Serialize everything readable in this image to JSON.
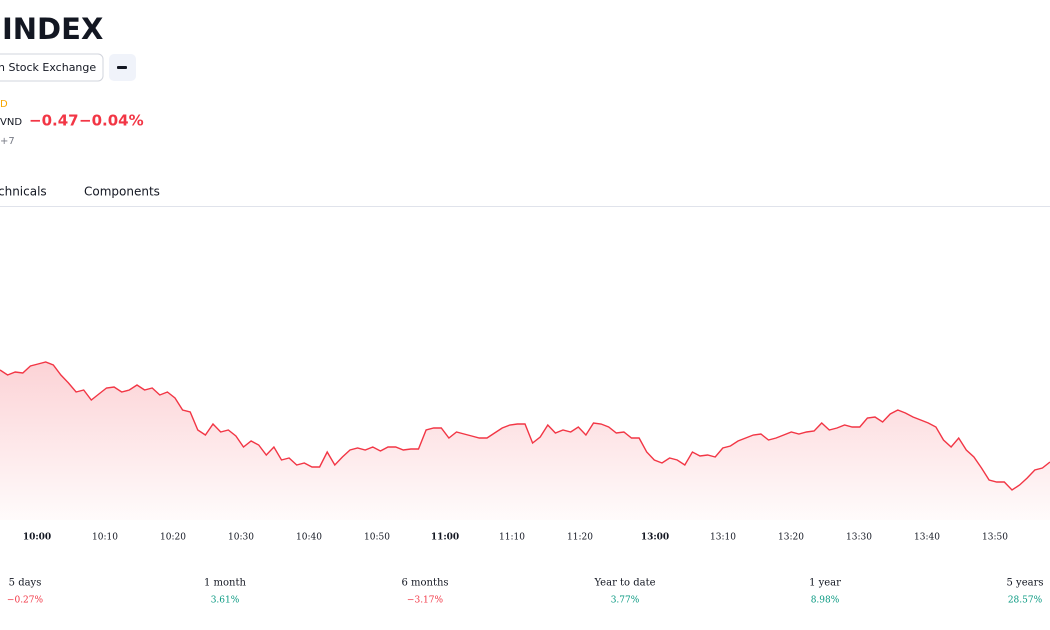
{
  "header": {
    "title": "INDEX",
    "exchange": "h Stock Exchange",
    "currency_fragment": "D",
    "currency": "VND",
    "change": "−0.47",
    "change_percent": "−0.04%",
    "timezone": "+7"
  },
  "tabs": [
    "chnicals",
    "Components"
  ],
  "chart_data": {
    "type": "line",
    "color": "#f23645",
    "time_labels": [
      "10:00",
      "10:10",
      "10:20",
      "10:30",
      "10:40",
      "10:50",
      "11:00",
      "11:10",
      "11:20",
      "13:00",
      "13:10",
      "13:20",
      "13:30",
      "13:40",
      "13:50"
    ],
    "bold_labels": [
      "10:00",
      "11:00",
      "13:00"
    ],
    "ylim": [
      0,
      180
    ],
    "values": [
      150,
      145,
      148,
      147,
      154,
      156,
      158,
      155,
      145,
      137,
      128,
      130,
      120,
      126,
      132,
      133,
      128,
      130,
      135,
      130,
      132,
      125,
      128,
      122,
      110,
      108,
      90,
      85,
      96,
      88,
      90,
      84,
      73,
      79,
      75,
      65,
      73,
      60,
      62,
      55,
      57,
      53,
      53,
      68,
      55,
      63,
      70,
      72,
      70,
      73,
      69,
      73,
      73,
      70,
      71,
      71,
      90,
      92,
      92,
      82,
      88,
      86,
      84,
      82,
      82,
      87,
      92,
      95,
      96,
      96,
      77,
      83,
      95,
      87,
      90,
      88,
      93,
      85,
      97,
      96,
      93,
      87,
      88,
      82,
      82,
      68,
      60,
      57,
      62,
      60,
      55,
      68,
      64,
      65,
      63,
      72,
      74,
      79,
      82,
      85,
      86,
      80,
      82,
      85,
      88,
      86,
      88,
      89,
      97,
      90,
      92,
      95,
      93,
      93,
      102,
      103,
      98,
      106,
      110,
      107,
      103,
      100,
      97,
      93,
      80,
      73,
      82,
      70,
      63,
      52,
      40,
      38,
      38,
      30,
      35,
      42,
      50,
      52,
      58
    ]
  },
  "periods": [
    {
      "name": "5 days",
      "change": "−0.27%"
    },
    {
      "name": "1 month",
      "change": "3.61%"
    },
    {
      "name": "6 months",
      "change": "−3.17%"
    },
    {
      "name": "Year to date",
      "change": "3.77%"
    },
    {
      "name": "1 year",
      "change": "8.98%"
    },
    {
      "name": "5 years",
      "change": "28.57%"
    }
  ]
}
